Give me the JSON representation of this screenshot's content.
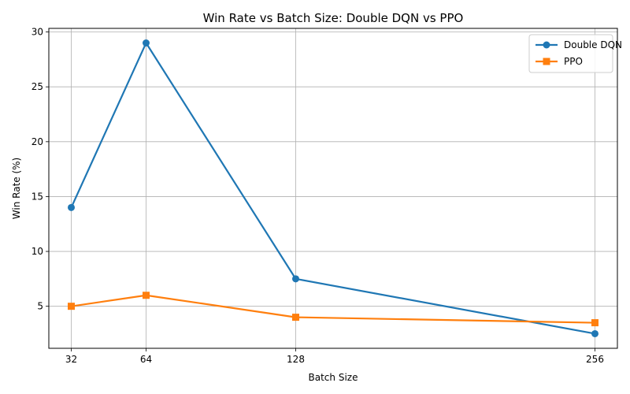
{
  "chart_data": {
    "type": "line",
    "title": "Win Rate vs Batch Size: Double DQN vs PPO",
    "xlabel": "Batch Size",
    "ylabel": "Win Rate (%)",
    "x": [
      32,
      64,
      128,
      256
    ],
    "x_ticks": [
      "32",
      "64",
      "128",
      "256"
    ],
    "y_ticks": [
      "5",
      "10",
      "15",
      "20",
      "25",
      "30"
    ],
    "xlim": [
      22.4,
      265.6
    ],
    "ylim": [
      1.17,
      30.33
    ],
    "grid": true,
    "legend_position": "top-right",
    "series": [
      {
        "name": "Double DQN",
        "values": [
          14.0,
          29.0,
          7.5,
          2.5
        ],
        "color": "#1f77b4",
        "marker": "circle"
      },
      {
        "name": "PPO",
        "values": [
          5.0,
          6.0,
          4.0,
          3.5
        ],
        "color": "#ff7f0e",
        "marker": "square"
      }
    ]
  }
}
